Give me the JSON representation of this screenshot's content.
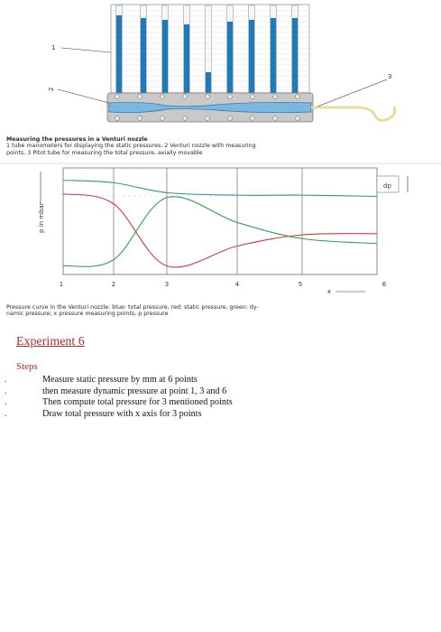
{
  "figure1": {
    "labels": [
      "1",
      "2",
      "3"
    ],
    "caption_lines": [
      "Measuring the pressures in a Venturi nozzle",
      "1 tube manometers for displaying the static pressures, 2 Venturi nozzle with measuring",
      "points, 3 Pitot tube for measuring the total pressure, axially movable"
    ]
  },
  "chart_data": {
    "type": "line",
    "x": [
      1,
      2,
      3,
      4,
      5,
      6
    ],
    "xticks": [
      "1",
      "2",
      "3",
      "4",
      "5",
      "6"
    ],
    "xlabel": "x",
    "ylabel": "p in mbar",
    "annotation": "dp",
    "series": [
      {
        "color": "#2f8fa8",
        "values": [
          7.3,
          7.1,
          6.3,
          6.1,
          6.1,
          6.0
        ]
      },
      {
        "color": "#cf3a3a",
        "values": [
          6.2,
          5.4,
          0.4,
          2.0,
          2.9,
          3.0
        ]
      },
      {
        "color": "#3a9a55",
        "values": [
          0.4,
          0.9,
          5.9,
          3.9,
          2.6,
          2.2
        ]
      }
    ],
    "caption_lines": [
      "Pressure curve in the Venturi nozzle: blue: total pressure, red: static pressure, green: dy-",
      "namic pressure; x pressure measuring points, p pressure"
    ]
  },
  "experiment": {
    "title": "Experiment 6",
    "steps_label": "Steps",
    "steps": [
      "Measure static pressure by mm at 6 points",
      "then  measure dynamic pressure at point 1, 3 and 6",
      "Then compute total pressure for 3 mentioned points",
      "Draw total pressure with x axis for 3 points"
    ],
    "bullet": "."
  },
  "colors": {
    "tube_blue": "#1e7bb8",
    "nozzle_blue": "#7ab8e4",
    "pitot_yellow": "#efe7b3",
    "heading_red": "#b02a2a"
  }
}
